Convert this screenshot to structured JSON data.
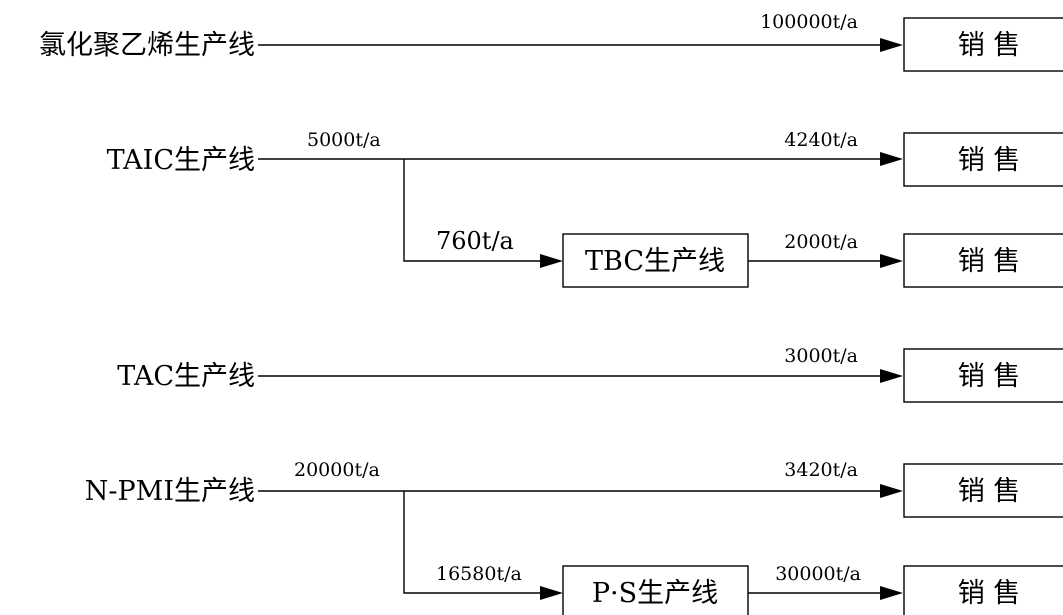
{
  "flows": [
    {
      "source": "氯化聚乙烯生产线",
      "out_qty": "100000t/a",
      "dest": "销 售"
    },
    {
      "source": "TAIC生产线",
      "in_qty": "5000t/a",
      "out_qty": "4240t/a",
      "dest": "销 售",
      "branch": {
        "qty": "760t/a",
        "process": "TBC生产线",
        "out_qty": "2000t/a",
        "dest": "销 售"
      }
    },
    {
      "source": "TAC生产线",
      "out_qty": "3000t/a",
      "dest": "销 售"
    },
    {
      "source": "N-PMI生产线",
      "in_qty": "20000t/a",
      "out_qty": "3420t/a",
      "dest": "销 售",
      "branch": {
        "qty": "16580t/a",
        "process": "P·S生产线",
        "out_qty": "30000t/a",
        "dest": "销 售"
      }
    }
  ]
}
